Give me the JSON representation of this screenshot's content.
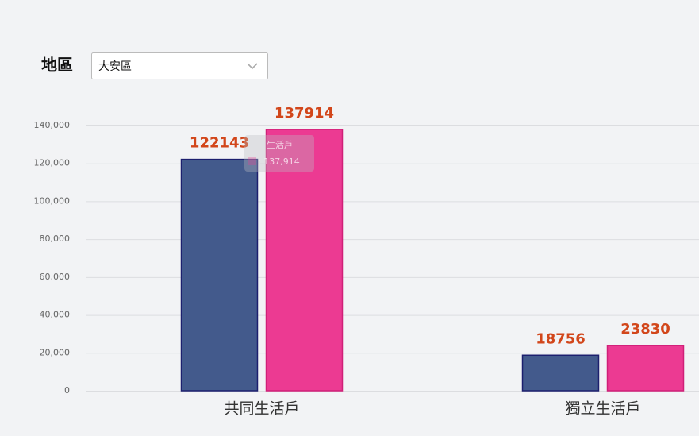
{
  "filter": {
    "label": "地區",
    "selected": "大安區"
  },
  "chart_data": {
    "type": "bar",
    "categories": [
      "共同生活戶",
      "獨立生活戶"
    ],
    "series": [
      {
        "color": "#435a8c",
        "values": [
          122143,
          18756
        ]
      },
      {
        "color": "#ec3a92",
        "values": [
          137914,
          23830
        ]
      }
    ],
    "ylim": [
      0,
      140000
    ],
    "yticks": [
      0,
      {
        "value": 20000,
        "label": "20,000"
      },
      {
        "value": 40000,
        "label": "40,000"
      },
      {
        "value": 60000,
        "label": "60,000"
      },
      {
        "value": 80000,
        "label": "80,000"
      },
      {
        "value": 100000,
        "label": "100,000"
      },
      {
        "value": 120000,
        "label": "120,000"
      },
      {
        "value": 140000,
        "label": "140,000"
      }
    ],
    "grid": true,
    "tooltip": {
      "title": "生活戶",
      "text": ": 137,914"
    }
  }
}
